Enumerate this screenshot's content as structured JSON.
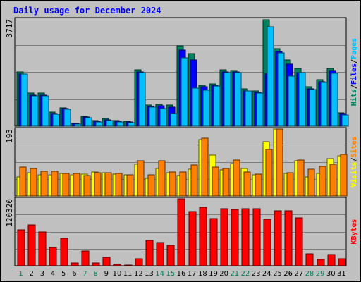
{
  "chart_data": {
    "type": "bar",
    "title": "Daily usage for December 2024",
    "categories": [
      "1",
      "2",
      "3",
      "4",
      "5",
      "6",
      "7",
      "8",
      "9",
      "10",
      "11",
      "12",
      "13",
      "14",
      "15",
      "16",
      "17",
      "18",
      "19",
      "20",
      "21",
      "22",
      "23",
      "24",
      "25",
      "26",
      "27",
      "28",
      "29",
      "30",
      "31"
    ],
    "weekend_days": [
      "1",
      "7",
      "8",
      "14",
      "15",
      "21",
      "22",
      "28",
      "29"
    ],
    "panels": [
      {
        "id": "hits",
        "ymax_label": "3717",
        "ymax": 3717,
        "grid": true,
        "axis_label": [
          {
            "text": "Hits",
            "color": "#00805c"
          },
          {
            "text": "/",
            "color": "#000000"
          },
          {
            "text": "Files",
            "color": "#0000ff"
          },
          {
            "text": "/",
            "color": "#000000"
          },
          {
            "text": "Pages",
            "color": "#00c0ff"
          }
        ],
        "series": [
          {
            "name": "Hits",
            "color": "#00805c",
            "values": [
              1880,
              1140,
              1160,
              480,
              640,
              110,
              350,
              200,
              280,
              200,
              170,
              1960,
              730,
              760,
              740,
              2780,
              2520,
              1420,
              1460,
              1960,
              1940,
              1300,
              1220,
              3700,
              2680,
              2300,
              2000,
              1380,
              1620,
              2010,
              470
            ]
          },
          {
            "name": "Files",
            "color": "#0000ff",
            "values": [
              1810,
              1070,
              1070,
              440,
              600,
              90,
              320,
              170,
              230,
              160,
              140,
              1880,
              680,
              700,
              660,
              2640,
              2300,
              1360,
              1420,
              1880,
              1880,
              1230,
              1170,
              1800,
              2600,
              2160,
              1860,
              1300,
              1540,
              1920,
              440
            ]
          },
          {
            "name": "Pages",
            "color": "#00c0ff",
            "values": [
              1800,
              1060,
              1060,
              420,
              590,
              70,
              300,
              140,
              200,
              140,
              130,
              1860,
              650,
              600,
              450,
              2380,
              1320,
              1240,
              1400,
              1850,
              1860,
              1220,
              1150,
              3460,
              2540,
              1740,
              1860,
              1280,
              1520,
              1830,
              400
            ]
          }
        ]
      },
      {
        "id": "sites",
        "ymax_label": "193",
        "ymax": 193,
        "grid": true,
        "axis_label": [
          {
            "text": "Visits",
            "color": "#ffff00"
          },
          {
            "text": "/",
            "color": "#000000"
          },
          {
            "text": "Sites",
            "color": "#ff8000"
          }
        ],
        "series": [
          {
            "name": "Visits",
            "color": "#ffff00",
            "values": [
              54,
              68,
              60,
              60,
              66,
              60,
              62,
              70,
              67,
              63,
              60,
              92,
              50,
              80,
              67,
              59,
              78,
              162,
              117,
              75,
              93,
              79,
              61,
              156,
              193,
              64,
              102,
              55,
              65,
              107,
              116
            ]
          },
          {
            "name": "Sites",
            "color": "#ff8000",
            "values": [
              83,
              79,
              71,
              72,
              64,
              64,
              58,
              67,
              67,
              64,
              61,
              102,
              61,
              102,
              70,
              70,
              89,
              166,
              83,
              80,
              103,
              70,
              62,
              135,
              194,
              67,
              103,
              78,
              85,
              91,
              119
            ]
          }
        ]
      },
      {
        "id": "kbytes",
        "ymax_label": "120320",
        "ymax": 120320,
        "grid": true,
        "axis_label": [
          {
            "text": "KBytes",
            "color": "#ff0000"
          }
        ],
        "series": [
          {
            "name": "KBytes",
            "color": "#ff0000",
            "values": [
              64800,
              74000,
              61000,
              33500,
              49500,
              5500,
              26500,
              4500,
              15700,
              2500,
              1200,
              12500,
              46000,
              41500,
              37000,
              120320,
              97700,
              104500,
              85000,
              102500,
              101500,
              103000,
              103000,
              84000,
              98500,
              98500,
              86500,
              22000,
              11500,
              20500,
              13000
            ]
          }
        ]
      }
    ]
  }
}
